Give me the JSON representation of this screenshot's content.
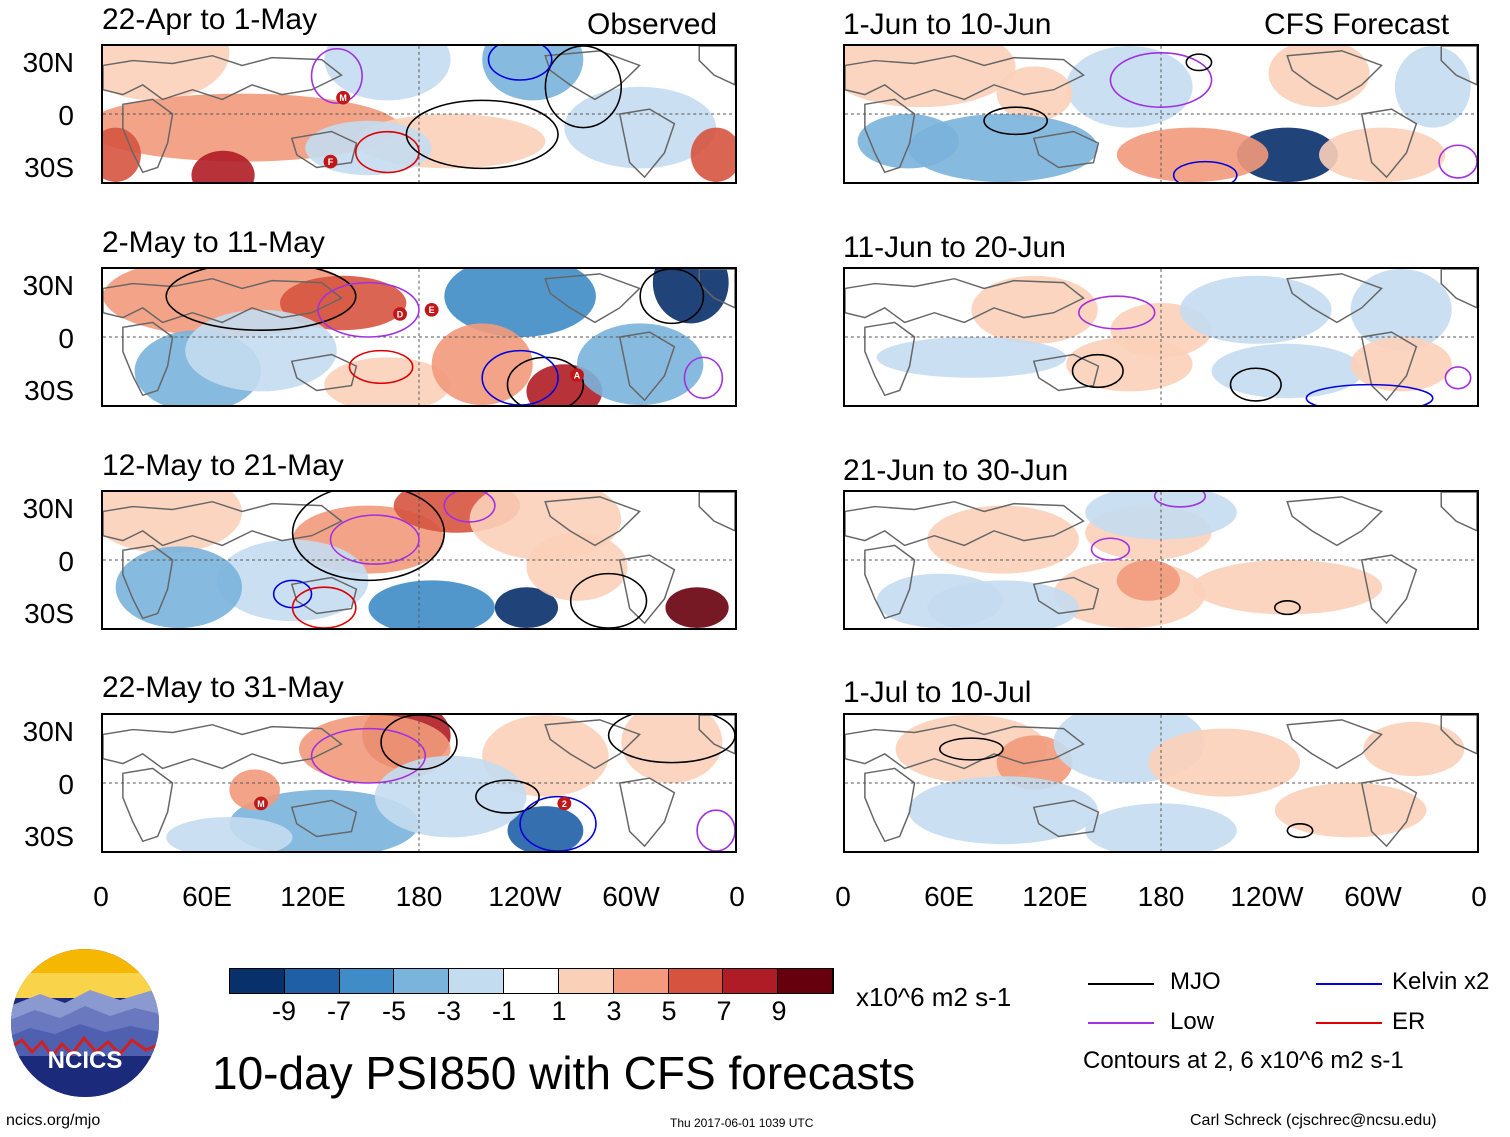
{
  "chart_data": {
    "type": "heatmap",
    "title": "10-day PSI850 with CFS forecasts",
    "units": "x10^6 m2 s-1",
    "contour_note": "Contours at 2, 6 x10^6 m2 s-1",
    "lat_ticks": [
      "30N",
      "0",
      "30S"
    ],
    "lon_ticks": [
      "0",
      "60E",
      "120E",
      "180",
      "120W",
      "60W",
      "0"
    ],
    "columns": [
      {
        "header": "Observed",
        "side": "left"
      },
      {
        "header": "CFS Forecast",
        "side": "right"
      }
    ],
    "panels": [
      {
        "title": "22-Apr to 1-May",
        "column": "Observed",
        "storm_markers": [
          "M",
          "F"
        ]
      },
      {
        "title": "2-May to 11-May",
        "column": "Observed",
        "storm_markers": [
          "A",
          "D",
          "E"
        ]
      },
      {
        "title": "12-May to 21-May",
        "column": "Observed",
        "storm_markers": []
      },
      {
        "title": "22-May to 31-May",
        "column": "Observed",
        "storm_markers": [
          "M",
          "2"
        ]
      },
      {
        "title": "1-Jun to 10-Jun",
        "column": "CFS Forecast",
        "storm_markers": []
      },
      {
        "title": "11-Jun to 20-Jun",
        "column": "CFS Forecast",
        "storm_markers": []
      },
      {
        "title": "21-Jun to 30-Jun",
        "column": "CFS Forecast",
        "storm_markers": []
      },
      {
        "title": "1-Jul to 10-Jul",
        "column": "CFS Forecast",
        "storm_markers": []
      }
    ],
    "colorbar": {
      "labels": [
        "-9",
        "-7",
        "-5",
        "-3",
        "-1",
        "1",
        "3",
        "5",
        "7",
        "9"
      ],
      "colors": [
        "#08306b",
        "#1f5fa6",
        "#3f8cc7",
        "#7ab3db",
        "#c4dcef",
        "#ffffff",
        "#fbd0b9",
        "#f29a7b",
        "#d6543f",
        "#b01c25",
        "#67000d"
      ]
    },
    "legend": [
      {
        "label": "MJO",
        "color": "#000000"
      },
      {
        "label": "Kelvin x2",
        "color": "#0000dd"
      },
      {
        "label": "Low",
        "color": "#a030e0"
      },
      {
        "label": "ER",
        "color": "#dd0000"
      }
    ]
  },
  "footer": {
    "logo_text": "NCICS",
    "url": "ncics.org/mjo",
    "timestamp": "Thu 2017-06-01 1039 UTC",
    "author": "Carl Schreck (cjschrec@ncsu.edu)"
  }
}
